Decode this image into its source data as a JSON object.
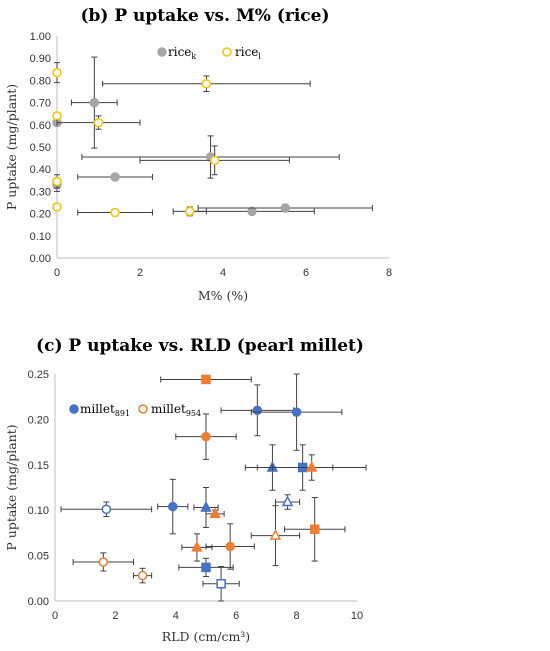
{
  "chart_data": [
    {
      "id": "b",
      "type": "scatter",
      "title": "(b) P uptake vs. M% (rice)",
      "xlabel": "M% (%)",
      "ylabel": "P uptake (mg/plant)",
      "xlim": [
        0,
        8
      ],
      "ylim": [
        0,
        1.0
      ],
      "xticks": [
        0,
        2,
        4,
        6,
        8
      ],
      "yticks": [
        0.0,
        0.1,
        0.2,
        0.3,
        0.4,
        0.5,
        0.6,
        0.7,
        0.8,
        0.9,
        1.0
      ],
      "ytick_labels": [
        "0.00",
        "0.10",
        "0.20",
        "0.30",
        "0.40",
        "0.50",
        "0.60",
        "0.70",
        "0.80",
        "0.90",
        "1.00"
      ],
      "grid": false,
      "legend": "top",
      "series": [
        {
          "name": "rice_k",
          "label_main": "rice",
          "label_sub": "k",
          "color": "#a6a6a6",
          "marker": "circle-filled",
          "points": [
            {
              "x": 0.9,
              "y": 0.7,
              "xerr": 0.55,
              "yerr": 0.205
            },
            {
              "x": 0.0,
              "y": 0.61,
              "xerr": 0.0,
              "yerr": 0.0
            },
            {
              "x": 0.0,
              "y": 0.33,
              "xerr": 0.0,
              "yerr": 0.03
            },
            {
              "x": 1.4,
              "y": 0.365,
              "xerr": 0.9,
              "yerr": 0.01
            },
            {
              "x": 3.7,
              "y": 0.455,
              "xerr": 3.1,
              "yerr": 0.095
            },
            {
              "x": 4.7,
              "y": 0.21,
              "xerr": 1.5,
              "yerr": 0.01
            },
            {
              "x": 5.5,
              "y": 0.225,
              "xerr": 2.1,
              "yerr": 0.015
            }
          ]
        },
        {
          "name": "rice_l",
          "label_main": "rice",
          "label_sub": "l",
          "color": "#ffc000",
          "marker": "circle-open",
          "points": [
            {
              "x": 0.0,
              "y": 0.835,
              "xerr": 0.0,
              "yerr": 0.045
            },
            {
              "x": 0.0,
              "y": 0.64,
              "xerr": 0.0,
              "yerr": 0.0
            },
            {
              "x": 0.0,
              "y": 0.345,
              "xerr": 0.0,
              "yerr": 0.03
            },
            {
              "x": 0.0,
              "y": 0.23,
              "xerr": 0.0,
              "yerr": 0.0
            },
            {
              "x": 1.0,
              "y": 0.61,
              "xerr": 1.0,
              "yerr": 0.03
            },
            {
              "x": 3.6,
              "y": 0.785,
              "xerr": 2.5,
              "yerr": 0.035
            },
            {
              "x": 3.8,
              "y": 0.44,
              "xerr": 1.8,
              "yerr": 0.065
            },
            {
              "x": 1.4,
              "y": 0.205,
              "xerr": 0.9,
              "yerr": 0.0
            },
            {
              "x": 3.2,
              "y": 0.21,
              "xerr": 0.4,
              "yerr": 0.02
            }
          ]
        }
      ]
    },
    {
      "id": "c",
      "type": "scatter",
      "title": "(c) P uptake vs. RLD (pearl millet)",
      "xlabel": "RLD (cm/cm³)",
      "ylabel": "P uptake (mg/plant)",
      "xlim": [
        0,
        10
      ],
      "ylim": [
        0,
        0.25
      ],
      "xticks": [
        0,
        2,
        4,
        6,
        8,
        10
      ],
      "yticks": [
        0.0,
        0.05,
        0.1,
        0.15,
        0.2,
        0.25
      ],
      "ytick_labels": [
        "0.00",
        "0.05",
        "0.10",
        "0.15",
        "0.20",
        "0.25"
      ],
      "grid": false,
      "legend": "top-left",
      "series": [
        {
          "name": "millet_891",
          "label_main": "millet",
          "label_sub": "891",
          "color": "#4472c4",
          "points": [
            {
              "x": 6.7,
              "y": 0.21,
              "xerr": 1.2,
              "yerr": 0.028,
              "marker": "circle-filled"
            },
            {
              "x": 8.0,
              "y": 0.208,
              "xerr": 1.5,
              "yerr": 0.042,
              "marker": "circle-filled"
            },
            {
              "x": 7.2,
              "y": 0.147,
              "xerr": 0.9,
              "yerr": 0.025,
              "marker": "triangle-filled"
            },
            {
              "x": 8.2,
              "y": 0.147,
              "xerr": 1.0,
              "yerr": 0.025,
              "marker": "square-filled"
            },
            {
              "x": 7.7,
              "y": 0.109,
              "xerr": 0.4,
              "yerr": 0.008,
              "marker": "triangle-open"
            },
            {
              "x": 1.7,
              "y": 0.101,
              "xerr": 1.5,
              "yerr": 0.008,
              "marker": "circle-open"
            },
            {
              "x": 3.9,
              "y": 0.104,
              "xerr": 0.5,
              "yerr": 0.03,
              "marker": "circle-filled"
            },
            {
              "x": 5.0,
              "y": 0.103,
              "xerr": 0.4,
              "yerr": 0.022,
              "marker": "triangle-filled"
            },
            {
              "x": 5.0,
              "y": 0.037,
              "xerr": 0.9,
              "yerr": 0.01,
              "marker": "square-filled"
            },
            {
              "x": 5.5,
              "y": 0.019,
              "xerr": 0.6,
              "yerr": 0.019,
              "marker": "square-open"
            }
          ]
        },
        {
          "name": "millet_954",
          "label_main": "millet",
          "label_sub": "954",
          "color": "#ed7d31",
          "points": [
            {
              "x": 5.0,
              "y": 0.244,
              "xerr": 1.5,
              "yerr": 0.0,
              "marker": "square-filled"
            },
            {
              "x": 5.0,
              "y": 0.181,
              "xerr": 1.0,
              "yerr": 0.025,
              "marker": "circle-filled"
            },
            {
              "x": 8.5,
              "y": 0.147,
              "xerr": 1.8,
              "yerr": 0.014,
              "marker": "triangle-filled"
            },
            {
              "x": 5.3,
              "y": 0.096,
              "xerr": 0.3,
              "yerr": 0.004,
              "marker": "triangle-filled"
            },
            {
              "x": 4.7,
              "y": 0.059,
              "xerr": 0.5,
              "yerr": 0.015,
              "marker": "triangle-filled"
            },
            {
              "x": 5.8,
              "y": 0.06,
              "xerr": 0.8,
              "yerr": 0.025,
              "marker": "circle-filled"
            },
            {
              "x": 7.3,
              "y": 0.072,
              "xerr": 0.8,
              "yerr": 0.033,
              "marker": "triangle-open"
            },
            {
              "x": 8.6,
              "y": 0.079,
              "xerr": 1.0,
              "yerr": 0.035,
              "marker": "square-filled"
            },
            {
              "x": 1.6,
              "y": 0.043,
              "xerr": 1.0,
              "yerr": 0.01,
              "marker": "circle-open"
            },
            {
              "x": 2.9,
              "y": 0.028,
              "xerr": 0.3,
              "yerr": 0.008,
              "marker": "circle-open"
            }
          ]
        }
      ]
    }
  ]
}
